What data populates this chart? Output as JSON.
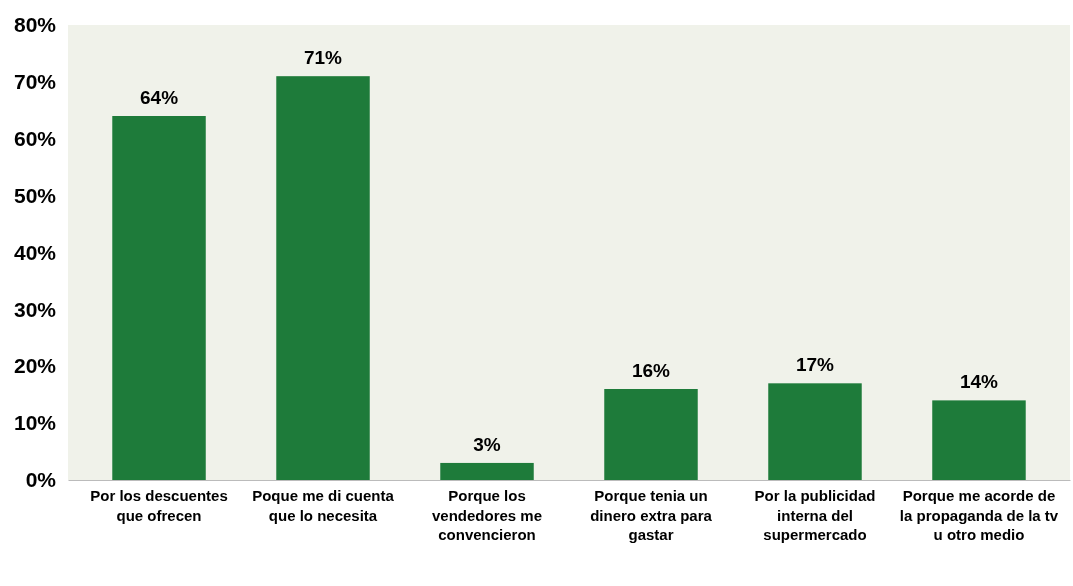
{
  "chart_data": {
    "type": "bar",
    "categories": [
      "Por  los descuentes que ofrecen",
      "Poque me di cuenta que lo necesita",
      "Porque los vendedores me convencieron",
      "Porque tenia un dinero extra para gastar",
      "Por la publicidad interna del supermercado",
      "Porque me acorde de la propaganda de la tv u otro medio"
    ],
    "values": [
      64,
      71,
      3,
      16,
      17,
      14
    ],
    "value_labels": [
      "64%",
      "71%",
      "3%",
      "16%",
      "17%",
      "14%"
    ],
    "color": "#1e7b3a",
    "ylim": [
      0,
      80
    ],
    "yticks": [
      {
        "value": 0,
        "label": "0%"
      },
      {
        "value": 10,
        "label": "10%"
      },
      {
        "value": 20,
        "label": "20%"
      },
      {
        "value": 30,
        "label": "30%"
      },
      {
        "value": 40,
        "label": "40%"
      },
      {
        "value": 50,
        "label": "50%"
      },
      {
        "value": 60,
        "label": "60%"
      },
      {
        "value": 70,
        "label": "70%"
      },
      {
        "value": 80,
        "label": "80%"
      }
    ],
    "grid": false
  }
}
